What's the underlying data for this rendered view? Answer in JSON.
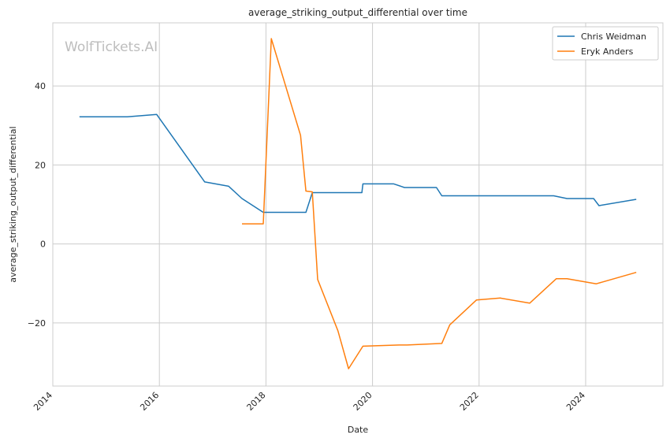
{
  "chart_data": {
    "type": "line",
    "title": "average_striking_output_differential over time",
    "xlabel": "Date",
    "ylabel": "average_striking_output_differential",
    "watermark": "WolfTickets.AI",
    "xlim": [
      2014.0,
      2025.45
    ],
    "ylim": [
      -36,
      56
    ],
    "xticks": [
      2014,
      2016,
      2018,
      2020,
      2022,
      2024
    ],
    "yticks": [
      -20,
      0,
      20,
      40
    ],
    "grid": true,
    "legend_position": "top-right",
    "series": [
      {
        "name": "Chris Weidman",
        "color": "#1f77b4",
        "points": [
          [
            2014.5,
            32.2
          ],
          [
            2015.4,
            32.2
          ],
          [
            2015.95,
            32.8
          ],
          [
            2016.85,
            15.7
          ],
          [
            2017.3,
            14.6
          ],
          [
            2017.55,
            11.5
          ],
          [
            2017.95,
            8.0
          ],
          [
            2018.75,
            8.0
          ],
          [
            2018.87,
            13.0
          ],
          [
            2019.8,
            13.0
          ],
          [
            2019.82,
            15.2
          ],
          [
            2020.4,
            15.2
          ],
          [
            2020.6,
            14.3
          ],
          [
            2021.2,
            14.3
          ],
          [
            2021.3,
            12.2
          ],
          [
            2023.4,
            12.2
          ],
          [
            2023.65,
            11.5
          ],
          [
            2024.15,
            11.5
          ],
          [
            2024.25,
            9.7
          ],
          [
            2024.95,
            11.3
          ]
        ]
      },
      {
        "name": "Eryk Anders",
        "color": "#ff7f0e",
        "points": [
          [
            2017.55,
            5.1
          ],
          [
            2017.95,
            5.1
          ],
          [
            2018.1,
            52.0
          ],
          [
            2018.65,
            27.5
          ],
          [
            2018.75,
            13.4
          ],
          [
            2018.87,
            13.2
          ],
          [
            2018.97,
            -9.0
          ],
          [
            2019.35,
            -22.0
          ],
          [
            2019.55,
            -31.6
          ],
          [
            2019.82,
            -25.9
          ],
          [
            2020.5,
            -25.6
          ],
          [
            2020.65,
            -25.6
          ],
          [
            2021.3,
            -25.2
          ],
          [
            2021.45,
            -20.5
          ],
          [
            2021.95,
            -14.2
          ],
          [
            2022.4,
            -13.7
          ],
          [
            2022.95,
            -15.0
          ],
          [
            2023.45,
            -8.8
          ],
          [
            2023.65,
            -8.8
          ],
          [
            2024.2,
            -10.1
          ],
          [
            2024.95,
            -7.2
          ]
        ]
      }
    ]
  }
}
